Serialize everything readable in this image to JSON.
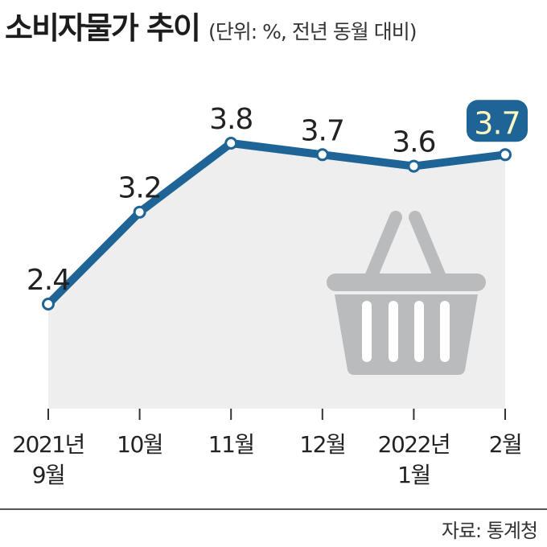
{
  "title": "소비자물가 추이",
  "subtitle": "(단위: %, 전년 동월 대비)",
  "source": "자료: 통계청",
  "colors": {
    "line": "#1e6496",
    "area": "#eeeeee",
    "highlight_text": "#fff7c0",
    "basket": "#b9bbbd"
  },
  "icon": "shopping-basket-icon",
  "chart_data": {
    "type": "line",
    "categories": [
      [
        "2021년",
        "9월"
      ],
      [
        "10월"
      ],
      [
        "11월"
      ],
      [
        "12월"
      ],
      [
        "2022년",
        "1월"
      ],
      [
        "2월"
      ]
    ],
    "values": [
      2.4,
      3.2,
      3.8,
      3.7,
      3.6,
      3.7
    ],
    "data_labels": [
      "2.4",
      "3.2",
      "3.8",
      "3.7",
      "3.6",
      "3.7"
    ],
    "highlight_index": 5,
    "title": "소비자물가 추이",
    "xlabel": "",
    "ylabel": "",
    "grid": false,
    "legend": "none"
  }
}
